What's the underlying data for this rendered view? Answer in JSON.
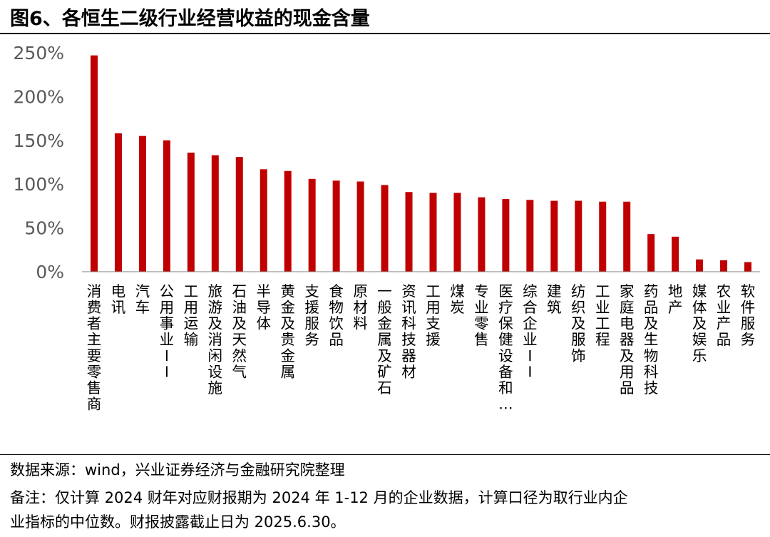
{
  "title": "图6、各恒生二级行业经营收益的现金含量",
  "source": "数据来源：wind，兴业证券经济与金融研究院整理",
  "notes": [
    "备注：仅计算 2024 财年对应财报期为 2024 年 1-12 月的企业数据，计算口径为取行业内企",
    "业指标的中位数。财报披露截止日为 2025.6.30。"
  ],
  "chart_data": {
    "type": "bar",
    "categories": [
      "消费者主要零售商",
      "电讯",
      "汽车",
      "公用事业 II",
      "工用运输",
      "旅游及消闲设施",
      "石油及天然气",
      "半导体",
      "黄金及贵金属",
      "支援服务",
      "食物饮品",
      "原材料",
      "一般金属及矿石",
      "资讯科技器材",
      "工用支援",
      "煤炭",
      "专业零售",
      "医疗保健设备和…",
      "综合企业 II",
      "建筑",
      "纺织及服饰",
      "工业工程",
      "家庭电器及用品",
      "药品及生物科技",
      "地产",
      "媒体及娱乐",
      "农业产品",
      "软件服务"
    ],
    "values": [
      247,
      158,
      155,
      150,
      136,
      133,
      131,
      117,
      115,
      106,
      104,
      103,
      99,
      91,
      90,
      90,
      85,
      83,
      82,
      81,
      81,
      80,
      80,
      43,
      40,
      14,
      13,
      11
    ],
    "ylim": [
      0,
      250
    ],
    "yticks": [
      "0%",
      "50%",
      "100%",
      "150%",
      "200%",
      "250%"
    ],
    "ytick_values": [
      0,
      50,
      100,
      150,
      200,
      250
    ],
    "bar_color": "#c00000",
    "grid": false
  }
}
